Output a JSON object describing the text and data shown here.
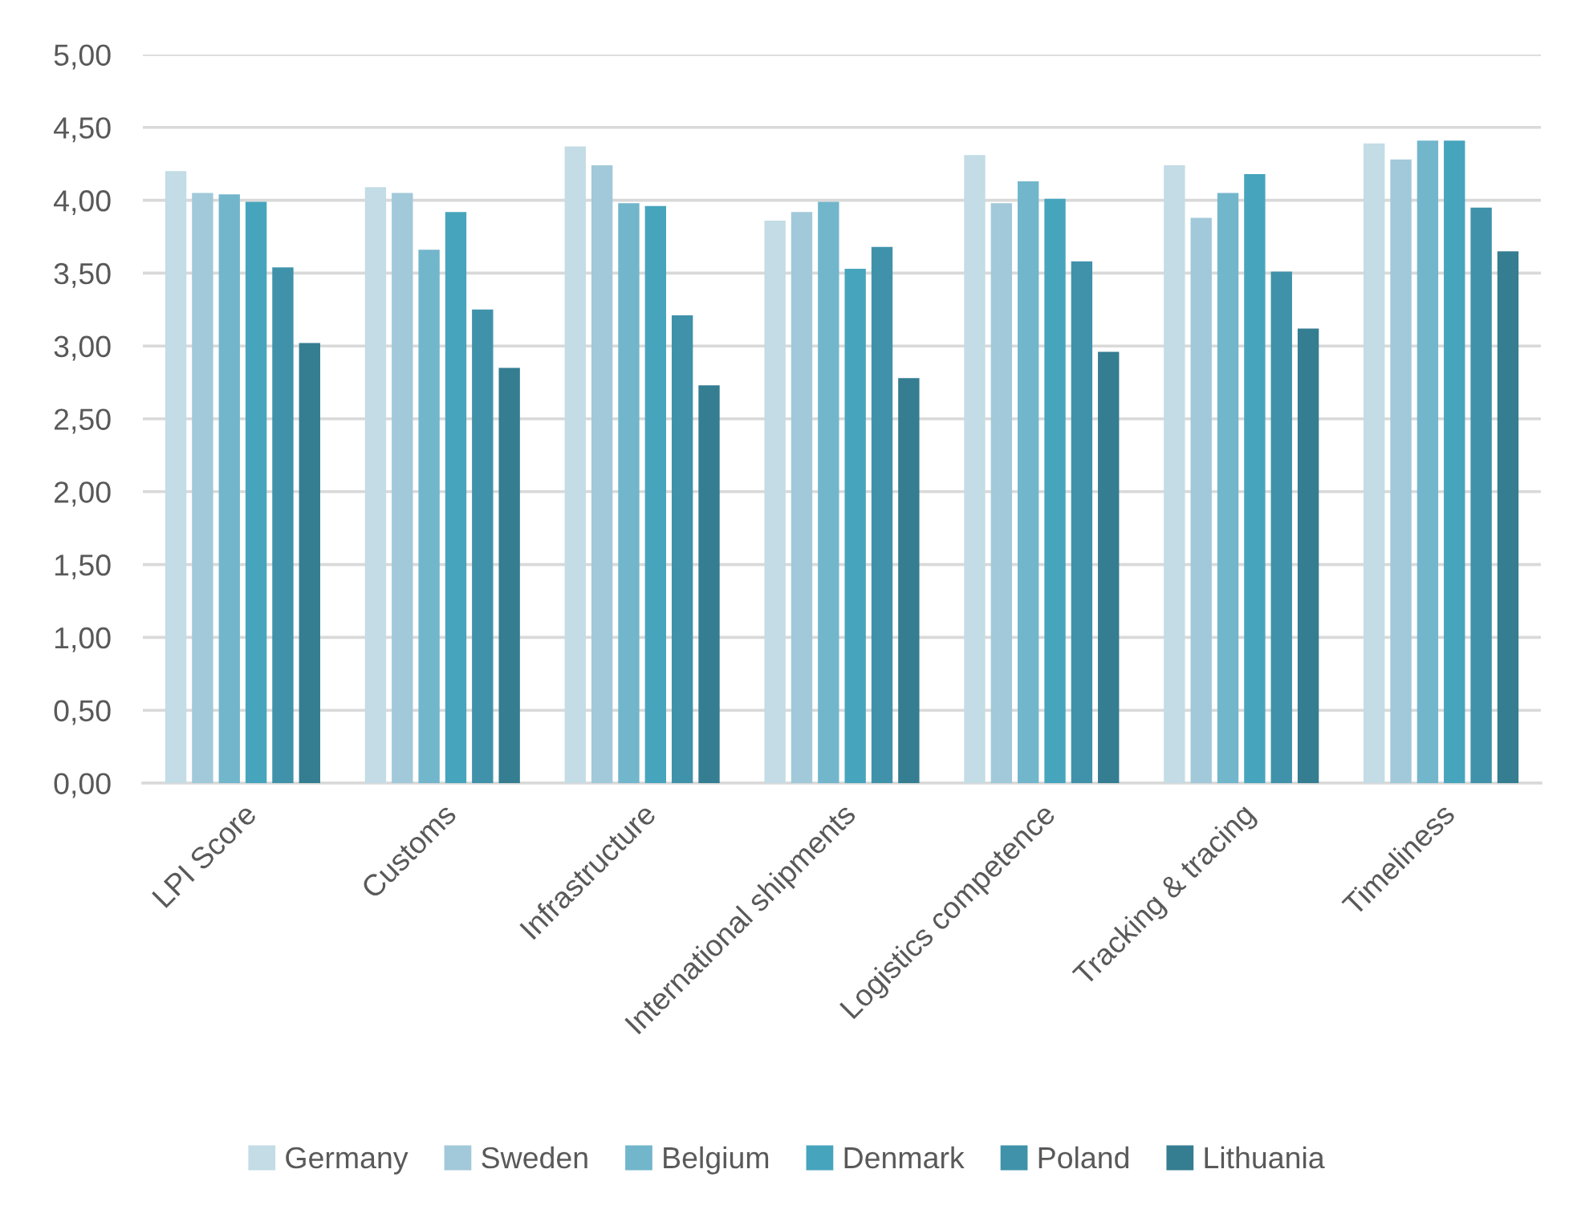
{
  "chart_data": {
    "type": "bar",
    "categories": [
      "LPI Score",
      "Customs",
      "Infrastructure",
      "International shipments",
      "Logistics competence",
      "Tracking & tracing",
      "Timeliness"
    ],
    "series": [
      {
        "name": "Germany",
        "color": "#c3dce5",
        "values": [
          4.2,
          4.09,
          4.37,
          3.86,
          4.31,
          4.24,
          4.39
        ]
      },
      {
        "name": "Sweden",
        "color": "#a1c9d9",
        "values": [
          4.05,
          4.05,
          4.24,
          3.92,
          3.98,
          3.88,
          4.28
        ]
      },
      {
        "name": "Belgium",
        "color": "#72b6cc",
        "values": [
          4.04,
          3.66,
          3.98,
          3.99,
          4.13,
          4.05,
          4.41
        ]
      },
      {
        "name": "Denmark",
        "color": "#47a4bd",
        "values": [
          3.99,
          3.92,
          3.96,
          3.53,
          4.01,
          4.18,
          4.41
        ]
      },
      {
        "name": "Poland",
        "color": "#3f92aa",
        "values": [
          3.54,
          3.25,
          3.21,
          3.68,
          3.58,
          3.51,
          3.95
        ]
      },
      {
        "name": "Lithuania",
        "color": "#357d91",
        "values": [
          3.02,
          2.85,
          2.73,
          2.78,
          2.96,
          3.12,
          3.65
        ]
      }
    ],
    "ylim": [
      0,
      5
    ],
    "yticks": [
      {
        "value": 0,
        "label": "0,00"
      },
      {
        "value": 0.5,
        "label": "0,50"
      },
      {
        "value": 1,
        "label": "1,00"
      },
      {
        "value": 1.5,
        "label": "1,50"
      },
      {
        "value": 2,
        "label": "2,00"
      },
      {
        "value": 2.5,
        "label": "2,50"
      },
      {
        "value": 3,
        "label": "3,00"
      },
      {
        "value": 3.5,
        "label": "3,50"
      },
      {
        "value": 4,
        "label": "4,00"
      },
      {
        "value": 4.5,
        "label": "4,50"
      },
      {
        "value": 5,
        "label": "5,00"
      }
    ],
    "grid": "y",
    "legend": "bottom"
  }
}
